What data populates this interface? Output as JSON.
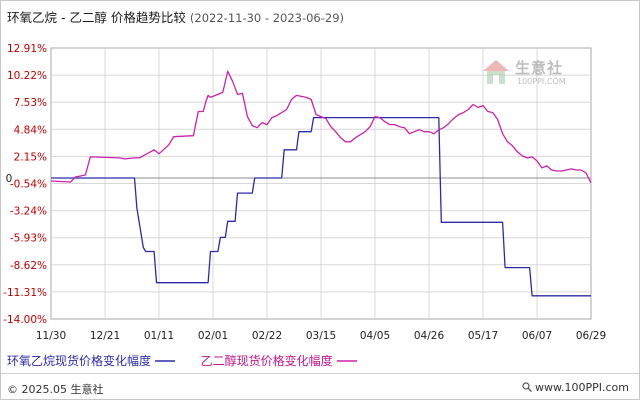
{
  "title": {
    "main": "环氧乙烷 - 乙二醇 价格趋势比较",
    "range": "(2022-11-30 - 2023-06-29)"
  },
  "watermark": {
    "name": "生意社",
    "site": "100PPI.COM",
    "icon": "house-logo-icon"
  },
  "legend": [
    {
      "label": "环氧乙烷现货价格变化幅度",
      "color": "#2b2baa"
    },
    {
      "label": "乙二醇现货价格变化幅度",
      "color": "#cc22aa"
    }
  ],
  "footer": {
    "copyright": "© 2025.05 生意社",
    "url": "www.100PPI.com"
  },
  "chart_data": {
    "type": "line",
    "title": "环氧乙烷 - 乙二醇 价格趋势比较",
    "date_range": [
      "2022-11-30",
      "2023-06-29"
    ],
    "x_tick_labels": [
      "11/30",
      "12/21",
      "01/11",
      "02/01",
      "02/22",
      "03/15",
      "04/05",
      "04/26",
      "05/17",
      "06/07",
      "06/29"
    ],
    "y_tick_labels": [
      "12.91%",
      "10.22%",
      "7.53%",
      "4.84%",
      "2.15%",
      "-0.54%",
      "-3.24%",
      "-5.93%",
      "-8.62%",
      "-11.31%",
      "-14.00%"
    ],
    "zero_label": "0",
    "ylim": [
      -14.0,
      12.91
    ],
    "grid": true,
    "legend_position": "bottom",
    "series": [
      {
        "name": "环氧乙烷现货价格变化幅度",
        "color": "#2b2baa",
        "x": [
          0,
          17,
          17.5,
          18.8,
          19.3,
          21,
          21.5,
          32,
          32.5,
          34,
          34.5,
          35.5,
          36,
          37.5,
          38,
          41,
          41.5,
          47,
          47.5,
          50,
          50.5,
          53,
          53.5,
          79,
          79.5,
          92,
          92.5,
          97.5,
          98,
          102,
          102.5,
          110
        ],
        "y": [
          0,
          0,
          -3.0,
          -6.9,
          -7.3,
          -7.3,
          -10.4,
          -10.4,
          -7.3,
          -7.3,
          -5.9,
          -5.9,
          -4.3,
          -4.3,
          -1.5,
          -1.5,
          0,
          0,
          2.8,
          2.8,
          4.6,
          4.6,
          6.0,
          6.0,
          -4.4,
          -4.4,
          -8.9,
          -8.9,
          -11.7,
          -11.7,
          -11.7,
          -11.7
        ]
      },
      {
        "name": "乙二醇现货价格变化幅度",
        "color": "#cc22aa",
        "x": [
          0,
          4,
          5,
          7,
          8,
          14,
          15,
          17,
          18,
          21,
          22,
          24,
          25,
          29,
          29.5,
          30,
          30.5,
          31,
          31.5,
          32,
          32.5,
          35,
          36,
          37,
          38,
          39,
          40,
          41,
          42,
          43,
          44,
          45,
          46,
          47,
          48,
          49,
          50,
          51,
          52,
          53,
          54,
          55,
          56,
          57,
          58,
          59,
          60,
          61,
          62,
          63,
          64,
          65,
          66,
          67,
          68,
          69,
          70,
          71,
          72,
          73,
          74,
          75,
          76,
          77,
          78,
          79,
          80,
          81,
          82,
          83,
          84,
          85,
          86,
          87,
          88,
          89,
          90,
          91,
          92,
          93,
          94,
          95,
          96,
          97,
          98,
          99,
          100,
          101,
          102,
          103,
          104,
          105,
          106,
          107,
          108,
          109,
          110
        ],
        "y": [
          -0.3,
          -0.4,
          0.1,
          0.3,
          2.1,
          2.0,
          1.9,
          2.0,
          2.0,
          2.8,
          2.4,
          3.3,
          4.1,
          4.2,
          5.4,
          6.6,
          6.6,
          6.6,
          7.5,
          8.2,
          8.0,
          8.5,
          10.6,
          9.6,
          8.3,
          8.4,
          6.1,
          5.2,
          5.0,
          5.5,
          5.3,
          6.0,
          6.2,
          6.5,
          6.8,
          7.8,
          8.2,
          8.1,
          8.0,
          7.8,
          6.3,
          6.1,
          5.9,
          5.1,
          4.6,
          4.0,
          3.6,
          3.6,
          4.0,
          4.3,
          4.6,
          5.1,
          6.1,
          6.0,
          5.6,
          5.3,
          5.3,
          5.1,
          5.0,
          4.4,
          4.6,
          4.8,
          4.6,
          4.6,
          4.4,
          4.8,
          5.0,
          5.4,
          5.9,
          6.3,
          6.5,
          6.8,
          7.3,
          7.0,
          7.2,
          6.6,
          6.5,
          5.8,
          4.4,
          3.6,
          3.2,
          2.6,
          2.2,
          2.0,
          2.1,
          1.7,
          1.0,
          1.2,
          0.8,
          0.7,
          0.7,
          0.8,
          0.9,
          0.8,
          0.8,
          0.5,
          -0.5
        ]
      }
    ]
  }
}
